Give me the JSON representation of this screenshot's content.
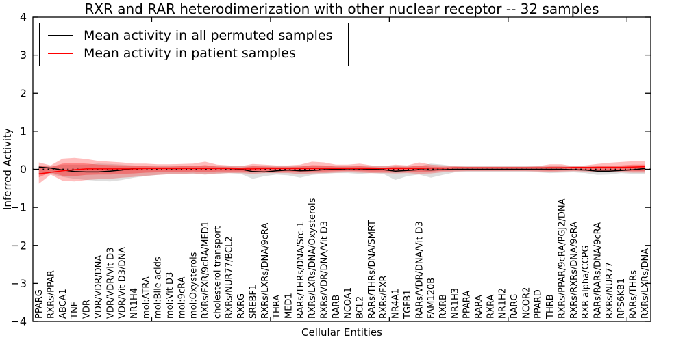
{
  "figure": {
    "title": "RXR and RAR heterodimerization with other nuclear receptor -- 32 samples",
    "xlabel": "Cellular Entities",
    "ylabel": "Inferred Activity"
  },
  "legend": {
    "items": [
      {
        "label": "Mean activity in all permuted samples",
        "color": "#000000"
      },
      {
        "label": "Mean activity in patient samples",
        "color": "#ff0000"
      }
    ]
  },
  "chart_data": {
    "type": "line",
    "title": "RXR and RAR heterodimerization with other nuclear receptor -- 32 samples",
    "xlabel": "Cellular Entities",
    "ylabel": "Inferred Activity",
    "ylim": [
      -4,
      4
    ],
    "y_tick_values": [
      4,
      3,
      2,
      1,
      0,
      -1,
      -2,
      -3,
      -4
    ],
    "y_tick_labels": [
      "4",
      "3",
      "2",
      "1",
      "0",
      "−1",
      "−2",
      "−3",
      "−4"
    ],
    "x_major_ticks": [
      10,
      20,
      30,
      40,
      50
    ],
    "grid": false,
    "legend_position": "upper left",
    "categories": [
      "PPARG",
      "RXRs/PPAR",
      "ABCA1",
      "TNF",
      "VDR",
      "VDR/VDR/DNA",
      "VDR/VDR/Vit D3",
      "VDR/Vit D3/DNA",
      "NR1H4",
      "mol:ATRA",
      "mol:Bile acids",
      "mol:Vit D3",
      "mol:9cRA",
      "mol:Oxysterols",
      "RXRs/FXR/9cRA/MED1",
      "cholesterol transport",
      "RXRs/NUR77/BCL2",
      "RXRG",
      "SREBF1",
      "RXRs/LXRs/DNA/9cRA",
      "THRA",
      "MED1",
      "RARs/THRs/DNA/Src-1",
      "RXRs/LXRs/DNA/Oxysterols",
      "RXRs/VDR/DNA/Vit D3",
      "RARB",
      "NCOA1",
      "BCL2",
      "RARs/THRs/DNA/SMRT",
      "RXRs/FXR",
      "NR4A1",
      "TGFB1",
      "RARs/VDR/DNA/Vit D3",
      "FAM120B",
      "RXRB",
      "NR1H3",
      "PPARA",
      "RARA",
      "RXRA",
      "NR1H2",
      "RARG",
      "NCOR2",
      "PPARD",
      "THRB",
      "RXRs/PPAR/9cRA/PGJ2/DNA",
      "RXRs/RXRs/DNA/9cRA",
      "RXR alpha/CCPG",
      "RARs/RARs/DNA/9cRA",
      "RXRs/NUR77",
      "RPS6KB1",
      "RARs/THRs",
      "RXRs/LXRs/DNA"
    ],
    "zero_line": {
      "value": 0,
      "color": "#000000",
      "style": "dotted"
    },
    "series": [
      {
        "name": "Mean activity in all permuted samples",
        "color": "#000000",
        "style": "solid",
        "values": [
          0.06,
          0.03,
          -0.02,
          -0.06,
          -0.07,
          -0.07,
          -0.05,
          -0.02,
          0.02,
          0.03,
          0.03,
          0.02,
          0.02,
          0.03,
          0.03,
          0.03,
          0.02,
          0.0,
          -0.06,
          -0.07,
          -0.04,
          -0.02,
          -0.04,
          -0.03,
          -0.01,
          0.0,
          0.01,
          0.01,
          0.0,
          -0.01,
          -0.05,
          -0.03,
          -0.01,
          -0.02,
          -0.01,
          0.0,
          0.0,
          0.0,
          0.0,
          0.0,
          0.0,
          0.0,
          0.0,
          0.0,
          0.0,
          -0.01,
          -0.02,
          -0.05,
          -0.05,
          -0.03,
          -0.01,
          0.02
        ]
      },
      {
        "name": "Mean activity in patient samples",
        "color": "#ff0000",
        "style": "solid",
        "values": [
          -0.12,
          -0.08,
          -0.04,
          -0.01,
          0.01,
          0.01,
          0.01,
          0.01,
          0.01,
          0.02,
          0.02,
          0.02,
          0.02,
          0.02,
          0.02,
          0.02,
          0.02,
          0.01,
          0.01,
          0.02,
          0.02,
          0.02,
          0.02,
          0.02,
          0.02,
          0.02,
          0.02,
          0.02,
          0.02,
          0.02,
          0.02,
          0.02,
          0.02,
          0.03,
          0.03,
          0.04,
          0.04,
          0.04,
          0.04,
          0.04,
          0.04,
          0.04,
          0.04,
          0.04,
          0.04,
          0.05,
          0.05,
          0.05,
          0.05,
          0.05,
          0.06,
          0.07
        ]
      }
    ],
    "bands": [
      {
        "name": "permuted-samples-range",
        "color": "#999999",
        "opacity": 0.32,
        "upper": [
          0.1,
          0.08,
          0.12,
          0.12,
          0.12,
          0.15,
          0.14,
          0.12,
          0.1,
          0.09,
          0.08,
          0.08,
          0.08,
          0.08,
          0.09,
          0.08,
          0.08,
          0.08,
          0.1,
          0.09,
          0.08,
          0.08,
          0.09,
          0.08,
          0.08,
          0.08,
          0.08,
          0.08,
          0.08,
          0.08,
          0.1,
          0.09,
          0.08,
          0.15,
          0.12,
          0.08,
          0.08,
          0.08,
          0.08,
          0.08,
          0.08,
          0.08,
          0.08,
          0.08,
          0.08,
          0.08,
          0.1,
          0.09,
          0.08,
          0.08,
          0.08,
          0.08
        ],
        "lower": [
          -0.15,
          -0.12,
          -0.2,
          -0.25,
          -0.28,
          -0.3,
          -0.32,
          -0.28,
          -0.22,
          -0.18,
          -0.15,
          -0.13,
          -0.12,
          -0.12,
          -0.14,
          -0.12,
          -0.1,
          -0.12,
          -0.25,
          -0.18,
          -0.14,
          -0.16,
          -0.22,
          -0.15,
          -0.12,
          -0.1,
          -0.1,
          -0.12,
          -0.1,
          -0.12,
          -0.28,
          -0.18,
          -0.14,
          -0.22,
          -0.15,
          -0.08,
          -0.08,
          -0.08,
          -0.08,
          -0.08,
          -0.08,
          -0.08,
          -0.08,
          -0.1,
          -0.09,
          -0.08,
          -0.1,
          -0.15,
          -0.14,
          -0.1,
          -0.12,
          -0.12
        ]
      },
      {
        "name": "patient-samples-range-outer",
        "color": "#ff0000",
        "opacity": 0.26,
        "upper": [
          0.18,
          0.1,
          0.28,
          0.3,
          0.27,
          0.22,
          0.2,
          0.18,
          0.15,
          0.15,
          0.13,
          0.13,
          0.14,
          0.15,
          0.2,
          0.12,
          0.1,
          0.08,
          0.14,
          0.12,
          0.1,
          0.1,
          0.12,
          0.2,
          0.18,
          0.12,
          0.12,
          0.15,
          0.1,
          0.08,
          0.12,
          0.1,
          0.18,
          0.12,
          0.1,
          0.08,
          0.07,
          0.07,
          0.07,
          0.07,
          0.07,
          0.07,
          0.08,
          0.13,
          0.13,
          0.08,
          0.1,
          0.14,
          0.17,
          0.19,
          0.21,
          0.22
        ],
        "lower": [
          -0.38,
          -0.14,
          -0.3,
          -0.32,
          -0.28,
          -0.26,
          -0.25,
          -0.22,
          -0.2,
          -0.17,
          -0.15,
          -0.13,
          -0.12,
          -0.11,
          -0.14,
          -0.11,
          -0.1,
          -0.1,
          -0.12,
          -0.1,
          -0.1,
          -0.1,
          -0.13,
          -0.11,
          -0.1,
          -0.09,
          -0.08,
          -0.09,
          -0.1,
          -0.1,
          -0.11,
          -0.1,
          -0.12,
          -0.11,
          -0.08,
          -0.06,
          -0.05,
          -0.05,
          -0.05,
          -0.05,
          -0.05,
          -0.05,
          -0.06,
          -0.07,
          -0.06,
          -0.05,
          -0.06,
          -0.07,
          -0.08,
          -0.08,
          -0.09,
          -0.09
        ]
      },
      {
        "name": "patient-samples-range-inner",
        "color": "#ff0000",
        "opacity": 0.3,
        "upper": [
          0.1,
          0.06,
          0.15,
          0.17,
          0.15,
          0.12,
          0.11,
          0.1,
          0.08,
          0.08,
          0.07,
          0.07,
          0.08,
          0.08,
          0.11,
          0.07,
          0.06,
          0.04,
          0.08,
          0.07,
          0.06,
          0.06,
          0.07,
          0.11,
          0.1,
          0.07,
          0.07,
          0.08,
          0.06,
          0.04,
          0.07,
          0.06,
          0.1,
          0.07,
          0.06,
          0.04,
          0.04,
          0.04,
          0.04,
          0.04,
          0.04,
          0.04,
          0.04,
          0.07,
          0.07,
          0.04,
          0.06,
          0.08,
          0.09,
          0.1,
          0.12,
          0.12
        ],
        "lower": [
          -0.21,
          -0.08,
          -0.17,
          -0.18,
          -0.15,
          -0.14,
          -0.14,
          -0.12,
          -0.11,
          -0.09,
          -0.08,
          -0.07,
          -0.07,
          -0.06,
          -0.08,
          -0.06,
          -0.06,
          -0.06,
          -0.07,
          -0.06,
          -0.06,
          -0.06,
          -0.07,
          -0.06,
          -0.06,
          -0.05,
          -0.04,
          -0.05,
          -0.06,
          -0.06,
          -0.06,
          -0.06,
          -0.07,
          -0.06,
          -0.04,
          -0.03,
          -0.03,
          -0.03,
          -0.03,
          -0.03,
          -0.03,
          -0.03,
          -0.03,
          -0.04,
          -0.03,
          -0.03,
          -0.03,
          -0.04,
          -0.04,
          -0.04,
          -0.05,
          -0.05
        ]
      }
    ]
  }
}
